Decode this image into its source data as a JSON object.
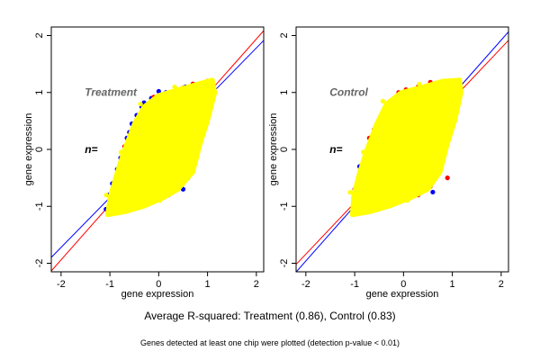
{
  "footer": {
    "summary": "Average R-squared: Treatment (0.86), Control (0.83)",
    "note": "Genes detected at least one chip were plotted (detection p-value < 0.01)"
  },
  "chart_data": [
    {
      "type": "scatter",
      "xlabel": "gene expression",
      "ylabel": "gene expression",
      "xlim": [
        -2.2,
        2.15
      ],
      "ylim": [
        -2.15,
        2.15
      ],
      "xticks": [
        "-2",
        "-1",
        "0",
        "1",
        "2"
      ],
      "yticks": [
        "-2",
        "-1",
        "0",
        "1",
        "2"
      ],
      "grid": false,
      "annotations": [
        {
          "text": "Treatment",
          "x": -0.5,
          "y": 1.0,
          "color": "#666666"
        },
        {
          "text": "n=",
          "x": -0.5,
          "y": 0.0,
          "color": "#000000"
        }
      ],
      "cloud_outline": [
        [
          -1.05,
          -1.15
        ],
        [
          -1.0,
          -0.85
        ],
        [
          -0.85,
          -0.4
        ],
        [
          -0.7,
          0
        ],
        [
          -0.5,
          0.45
        ],
        [
          -0.3,
          0.75
        ],
        [
          0,
          0.95
        ],
        [
          0.4,
          1.05
        ],
        [
          0.8,
          1.15
        ],
        [
          1.1,
          1.22
        ],
        [
          1.15,
          1.0
        ],
        [
          1.0,
          0.5
        ],
        [
          0.85,
          0.1
        ],
        [
          0.7,
          -0.4
        ],
        [
          0.4,
          -0.7
        ],
        [
          0.1,
          -0.85
        ],
        [
          -0.3,
          -1.0
        ],
        [
          -0.7,
          -1.1
        ]
      ],
      "cloud_color": "#ffff00",
      "series": [
        {
          "color": "#0000ff",
          "points": [
            [
              -1.08,
              -1.05
            ],
            [
              -1.02,
              -0.8
            ],
            [
              -0.95,
              -0.6
            ],
            [
              -0.85,
              -0.35
            ],
            [
              -0.78,
              -0.15
            ],
            [
              -0.6,
              0.3
            ],
            [
              -0.55,
              0.45
            ],
            [
              -0.45,
              0.6
            ],
            [
              -0.35,
              0.75
            ],
            [
              -0.3,
              0.82
            ],
            [
              -0.15,
              0.9
            ],
            [
              0.0,
              1.02
            ],
            [
              0.15,
              1.0
            ],
            [
              0.35,
              1.05
            ],
            [
              0.55,
              1.1
            ],
            [
              0.85,
              1.05
            ],
            [
              0.6,
              -0.5
            ],
            [
              0.5,
              -0.7
            ],
            [
              0.2,
              -0.8
            ],
            [
              -0.2,
              -0.75
            ],
            [
              0.3,
              -0.65
            ],
            [
              0.65,
              -0.2
            ],
            [
              -0.3,
              0.6
            ],
            [
              -0.65,
              0.2
            ]
          ]
        },
        {
          "color": "#ff0000",
          "points": [
            [
              0.5,
              1.08
            ],
            [
              0.7,
              1.15
            ],
            [
              0.9,
              1.12
            ],
            [
              1.0,
              1.2
            ],
            [
              1.1,
              1.18
            ],
            [
              0.3,
              1.0
            ],
            [
              -0.1,
              0.92
            ],
            [
              -0.7,
              0.05
            ],
            [
              -1.0,
              -1.1
            ]
          ]
        }
      ],
      "fit_lines": [
        {
          "color": "#ff0000",
          "intercept": 0.0,
          "slope": 0.97
        },
        {
          "color": "#0000ff",
          "intercept": 0.03,
          "slope": 0.876
        }
      ]
    },
    {
      "type": "scatter",
      "xlabel": "gene expression",
      "ylabel": "gene expression",
      "xlim": [
        -2.2,
        2.15
      ],
      "ylim": [
        -2.15,
        2.15
      ],
      "xticks": [
        "-2",
        "-1",
        "0",
        "1",
        "2"
      ],
      "yticks": [
        "-2",
        "-1",
        "0",
        "1",
        "2"
      ],
      "grid": false,
      "annotations": [
        {
          "text": "Control",
          "x": -0.5,
          "y": 1.0,
          "color": "#666666"
        },
        {
          "text": "n=",
          "x": -0.5,
          "y": 0.0,
          "color": "#000000"
        }
      ],
      "cloud_outline": [
        [
          -1.05,
          -1.15
        ],
        [
          -1.02,
          -0.8
        ],
        [
          -0.9,
          -0.4
        ],
        [
          -0.75,
          0
        ],
        [
          -0.55,
          0.45
        ],
        [
          -0.35,
          0.8
        ],
        [
          -0.05,
          1.0
        ],
        [
          0.4,
          1.1
        ],
        [
          0.8,
          1.2
        ],
        [
          1.15,
          1.22
        ],
        [
          1.18,
          1.0
        ],
        [
          1.05,
          0.5
        ],
        [
          0.9,
          0.1
        ],
        [
          0.75,
          -0.4
        ],
        [
          0.5,
          -0.7
        ],
        [
          0.15,
          -0.85
        ],
        [
          -0.3,
          -1.0
        ],
        [
          -0.7,
          -1.1
        ]
      ],
      "cloud_color": "#ffff00",
      "series": [
        {
          "color": "#ff0000",
          "points": [
            [
              -0.85,
              -0.35
            ],
            [
              -0.8,
              -0.2
            ],
            [
              -0.7,
              0.2
            ],
            [
              -0.6,
              0.35
            ],
            [
              -0.5,
              0.5
            ],
            [
              -0.35,
              0.65
            ],
            [
              -0.2,
              0.85
            ],
            [
              -0.1,
              1.0
            ],
            [
              0.05,
              1.05
            ],
            [
              0.3,
              1.1
            ],
            [
              0.55,
              1.18
            ],
            [
              0.8,
              1.15
            ],
            [
              1.0,
              1.2
            ],
            [
              0.95,
              0.4
            ],
            [
              0.85,
              0.05
            ],
            [
              0.7,
              -0.3
            ],
            [
              0.55,
              -0.65
            ],
            [
              0.3,
              -0.8
            ],
            [
              -0.1,
              -0.85
            ],
            [
              -0.5,
              -0.9
            ],
            [
              -0.9,
              -1.05
            ],
            [
              -1.0,
              -0.7
            ],
            [
              -0.75,
              -0.6
            ],
            [
              0.9,
              -0.5
            ]
          ]
        },
        {
          "color": "#0000ff",
          "points": [
            [
              -0.9,
              -0.3
            ],
            [
              0.85,
              0.35
            ],
            [
              0.6,
              -0.75
            ]
          ]
        }
      ],
      "fit_lines": [
        {
          "color": "#0000ff",
          "intercept": -0.02,
          "slope": 0.97
        },
        {
          "color": "#ff0000",
          "intercept": -0.03,
          "slope": 0.905
        }
      ]
    }
  ]
}
